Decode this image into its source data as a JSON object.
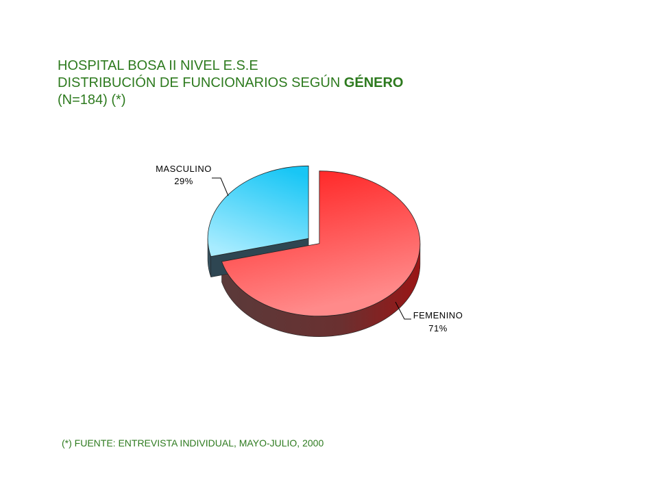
{
  "header": {
    "line1": "HOSPITAL BOSA II NIVEL E.S.E",
    "line2_prefix": "DISTRIBUCIÓN DE FUNCIONARIOS SEGÚN ",
    "line2_emph": "GÉNERO",
    "line3": "(N=184) (*)"
  },
  "footer": {
    "note": "(*) FUENTE: ENTREVISTA INDIVIDUAL, MAYO-JULIO, 2000"
  },
  "colors": {
    "title": "#2d7a1e",
    "femenino": "#ff2a2a",
    "masculino": "#33ccff"
  },
  "chart_data": {
    "type": "pie",
    "style": "3d-exploded",
    "slices": [
      {
        "label": "FEMENINO",
        "percent_label": "71%",
        "value": 71
      },
      {
        "label": "MASCULINO",
        "percent_label": "29%",
        "value": 29
      }
    ]
  }
}
